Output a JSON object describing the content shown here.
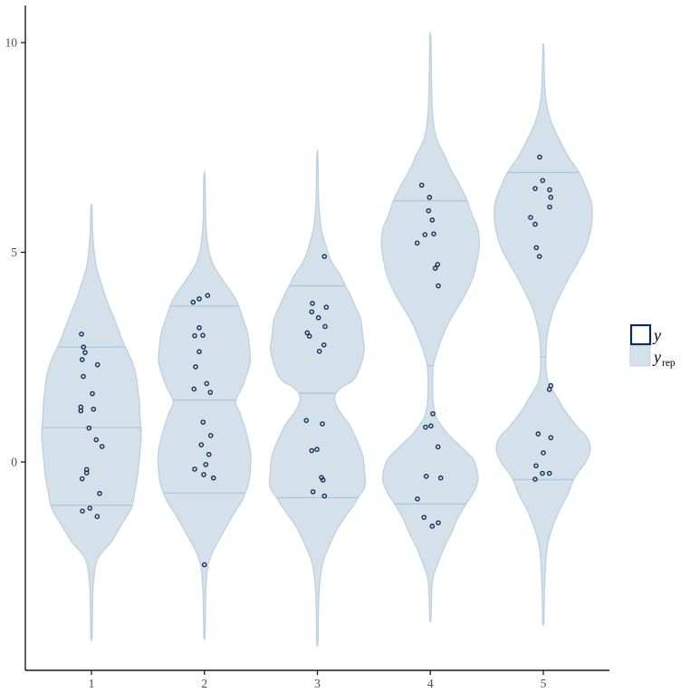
{
  "chart_data": {
    "type": "violin",
    "title": "",
    "xlabel": "",
    "ylabel": "",
    "grid": false,
    "legend_position": "right",
    "x_ticks": [
      {
        "group": 1,
        "label": "1"
      },
      {
        "group": 2,
        "label": "2"
      },
      {
        "group": 3,
        "label": "3"
      },
      {
        "group": 4,
        "label": "4"
      },
      {
        "group": 5,
        "label": "5"
      }
    ],
    "y_ticks": [
      {
        "value": 0,
        "label": "0"
      },
      {
        "value": 5,
        "label": "5"
      },
      {
        "value": 10,
        "label": "10"
      }
    ],
    "y_range": [
      -5,
      10.3
    ],
    "legend": {
      "items": [
        {
          "id": "y",
          "label_main": "y",
          "label_sub": "",
          "swatch": "outlined"
        },
        {
          "id": "y_rep",
          "label_main": "y",
          "label_sub": "rep",
          "swatch": "filled"
        }
      ]
    },
    "colors": {
      "violin_fill": "#d5e1ea",
      "violin_stroke": "#bdd1df",
      "quantile_line": "#adc6d8",
      "point_stroke": "#12315c",
      "axis": "#1a1a1a",
      "tick_label": "#4d4d4d",
      "legend_y_border": "#0c2c56",
      "legend_yrep_border": "#c9d9e4",
      "legend_text": "#000000"
    },
    "violins": [
      {
        "group": 1,
        "quantiles": [
          2.74,
          0.82,
          -1.03
        ],
        "profile": [
          [
            -4.17,
            0.7
          ],
          [
            -3.4,
            1.2
          ],
          [
            -2.8,
            2.5
          ],
          [
            -2.3,
            7
          ],
          [
            -1.9,
            22
          ],
          [
            -1.5,
            33
          ],
          [
            -1.1,
            44
          ],
          [
            -0.8,
            47
          ],
          [
            -0.4,
            50.5
          ],
          [
            0.0,
            52.5
          ],
          [
            0.35,
            54
          ],
          [
            0.7,
            55
          ],
          [
            1.1,
            53.5
          ],
          [
            1.4,
            53
          ],
          [
            1.7,
            51.5
          ],
          [
            2.1,
            49
          ],
          [
            2.44,
            44
          ],
          [
            2.81,
            36
          ],
          [
            3.2,
            29
          ],
          [
            3.53,
            23
          ],
          [
            3.9,
            16
          ],
          [
            4.25,
            11
          ],
          [
            4.6,
            6
          ],
          [
            5.0,
            3
          ],
          [
            5.5,
            1.3
          ],
          [
            6.08,
            0.6
          ]
        ],
        "points": [
          [
            -11,
            3.05
          ],
          [
            -8.7,
            2.74
          ],
          [
            -7,
            2.61
          ],
          [
            -10.3,
            2.44
          ],
          [
            6.7,
            2.32
          ],
          [
            -9,
            2.04
          ],
          [
            1,
            1.63
          ],
          [
            -11.7,
            1.31
          ],
          [
            -11.7,
            1.22
          ],
          [
            2.3,
            1.26
          ],
          [
            -2.7,
            0.81
          ],
          [
            5.3,
            0.53
          ],
          [
            11.7,
            0.37
          ],
          [
            -5.3,
            -0.18
          ],
          [
            -5.3,
            -0.26
          ],
          [
            -10.3,
            -0.4
          ],
          [
            9,
            -0.75
          ],
          [
            -1.7,
            -1.1
          ],
          [
            -10,
            -1.17
          ],
          [
            6.3,
            -1.3
          ]
        ]
      },
      {
        "group": 2,
        "quantiles": [
          3.72,
          1.48,
          -0.74
        ],
        "profile": [
          [
            -4.14,
            0.7
          ],
          [
            -3.4,
            1.2
          ],
          [
            -2.9,
            2
          ],
          [
            -2.45,
            4
          ],
          [
            -2.1,
            10
          ],
          [
            -1.94,
            14
          ],
          [
            -1.55,
            24
          ],
          [
            -1.23,
            32.5
          ],
          [
            -0.9,
            42
          ],
          [
            -0.5,
            48.8
          ],
          [
            -0.1,
            51
          ],
          [
            0.22,
            51
          ],
          [
            0.6,
            47.5
          ],
          [
            0.93,
            43
          ],
          [
            1.2,
            38.5
          ],
          [
            1.45,
            34.5
          ],
          [
            1.8,
            42
          ],
          [
            2.1,
            47
          ],
          [
            2.38,
            50.5
          ],
          [
            2.7,
            50
          ],
          [
            3.09,
            47.5
          ],
          [
            3.45,
            42
          ],
          [
            3.82,
            36
          ],
          [
            4.1,
            28
          ],
          [
            4.54,
            14
          ],
          [
            4.8,
            8
          ],
          [
            5.2,
            3.5
          ],
          [
            5.7,
            1.5
          ],
          [
            6.8,
            0.6
          ]
        ],
        "points": [
          [
            -12.45,
            3.81
          ],
          [
            -5.75,
            3.89
          ],
          [
            3.55,
            3.97
          ],
          [
            -5.75,
            3.2
          ],
          [
            -10.75,
            3.01
          ],
          [
            -1.75,
            3.02
          ],
          [
            -5.75,
            2.63
          ],
          [
            -9.75,
            2.27
          ],
          [
            2.55,
            1.87
          ],
          [
            -11.45,
            1.74
          ],
          [
            6.55,
            1.66
          ],
          [
            -1.45,
            0.95
          ],
          [
            6.95,
            0.63
          ],
          [
            -3.45,
            0.41
          ],
          [
            4.95,
            0.18
          ],
          [
            1.55,
            -0.06
          ],
          [
            -10.75,
            -0.17
          ],
          [
            -0.75,
            -0.3
          ],
          [
            9.95,
            -0.38
          ],
          [
            0,
            -2.45
          ]
        ]
      },
      {
        "group": 3,
        "quantiles": [
          4.2,
          1.64,
          -0.85
        ],
        "profile": [
          [
            -4.3,
            0.7
          ],
          [
            -3.5,
            1.2
          ],
          [
            -2.9,
            2.5
          ],
          [
            -2.4,
            6
          ],
          [
            -2.0,
            13
          ],
          [
            -1.6,
            22
          ],
          [
            -1.3,
            31
          ],
          [
            -1.0,
            41
          ],
          [
            -0.85,
            45
          ],
          [
            -0.58,
            52.5
          ],
          [
            -0.2,
            52
          ],
          [
            0.15,
            50
          ],
          [
            0.5,
            44
          ],
          [
            0.86,
            36
          ],
          [
            1.1,
            28
          ],
          [
            1.3,
            22
          ],
          [
            1.5,
            19
          ],
          [
            1.64,
            20.5
          ],
          [
            1.8,
            28
          ],
          [
            1.94,
            39
          ],
          [
            2.2,
            46
          ],
          [
            2.66,
            51.7
          ],
          [
            3.0,
            50
          ],
          [
            3.39,
            48
          ],
          [
            3.7,
            42
          ],
          [
            4.0,
            36
          ],
          [
            4.2,
            31
          ],
          [
            4.47,
            25
          ],
          [
            4.8,
            15
          ],
          [
            5.18,
            9
          ],
          [
            5.6,
            4
          ],
          [
            6.2,
            1.5
          ],
          [
            7.3,
            0.6
          ]
        ],
        "points": [
          [
            7.8,
            4.9
          ],
          [
            -5.5,
            3.78
          ],
          [
            9.8,
            3.69
          ],
          [
            -6.2,
            3.58
          ],
          [
            1.2,
            3.44
          ],
          [
            8.5,
            3.23
          ],
          [
            -11.2,
            3.08
          ],
          [
            -8.8,
            3.0
          ],
          [
            7.2,
            2.79
          ],
          [
            2.2,
            2.64
          ],
          [
            -12.2,
            0.99
          ],
          [
            5.5,
            0.91
          ],
          [
            -0.5,
            0.3
          ],
          [
            -6.2,
            0.27
          ],
          [
            4.5,
            -0.37
          ],
          [
            6.2,
            -0.43
          ],
          [
            -4.8,
            -0.71
          ],
          [
            7.8,
            -0.81
          ]
        ]
      },
      {
        "group": 4,
        "quantiles": [
          6.23,
          2.3,
          -1.0
        ],
        "profile": [
          [
            -3.74,
            0.7
          ],
          [
            -3.2,
            1.3
          ],
          [
            -2.75,
            3
          ],
          [
            -2.38,
            9
          ],
          [
            -2.0,
            16
          ],
          [
            -1.66,
            24
          ],
          [
            -1.35,
            30
          ],
          [
            -1.05,
            38
          ],
          [
            -0.75,
            47
          ],
          [
            -0.45,
            52.5
          ],
          [
            -0.15,
            51
          ],
          [
            0.1,
            46
          ],
          [
            0.4,
            32
          ],
          [
            0.65,
            20
          ],
          [
            0.86,
            12.5
          ],
          [
            1.1,
            6
          ],
          [
            1.45,
            3
          ],
          [
            1.9,
            2.5
          ],
          [
            2.31,
            3.5
          ],
          [
            2.66,
            8
          ],
          [
            3.02,
            14
          ],
          [
            3.4,
            22
          ],
          [
            3.74,
            31.7
          ],
          [
            4.1,
            41
          ],
          [
            4.47,
            48
          ],
          [
            4.85,
            52
          ],
          [
            5.18,
            54
          ],
          [
            5.55,
            52.5
          ],
          [
            5.9,
            46
          ],
          [
            6.23,
            40.8
          ],
          [
            6.63,
            31.7
          ],
          [
            7.0,
            22
          ],
          [
            7.34,
            15
          ],
          [
            7.65,
            8
          ],
          [
            8.0,
            4
          ],
          [
            8.5,
            2
          ],
          [
            9.2,
            1.2
          ],
          [
            10.13,
            0.5
          ]
        ],
        "points": [
          [
            -9.55,
            6.6
          ],
          [
            -0.95,
            6.31
          ],
          [
            -1.95,
            5.99
          ],
          [
            2.05,
            5.77
          ],
          [
            -5.95,
            5.42
          ],
          [
            3.75,
            5.44
          ],
          [
            -14.55,
            5.22
          ],
          [
            8.05,
            4.71
          ],
          [
            5.45,
            4.62
          ],
          [
            8.75,
            4.2
          ],
          [
            2.75,
            1.15
          ],
          [
            -5.25,
            0.83
          ],
          [
            0.75,
            0.86
          ],
          [
            8.45,
            0.36
          ],
          [
            -4.55,
            -0.34
          ],
          [
            11.45,
            -0.38
          ],
          [
            -14.25,
            -0.88
          ],
          [
            -6.95,
            -1.32
          ],
          [
            2.05,
            -1.53
          ],
          [
            8.75,
            -1.45
          ]
        ]
      },
      {
        "group": 5,
        "quantiles": [
          6.9,
          2.5,
          -0.42
        ],
        "profile": [
          [
            -3.82,
            0.7
          ],
          [
            -3.2,
            1.2
          ],
          [
            -2.7,
            2
          ],
          [
            -2.3,
            3
          ],
          [
            -2.0,
            4.5
          ],
          [
            -1.7,
            8
          ],
          [
            -1.37,
            13.3
          ],
          [
            -1.05,
            20
          ],
          [
            -0.79,
            26.7
          ],
          [
            -0.42,
            33.4
          ],
          [
            -0.2,
            40
          ],
          [
            0.0,
            46.7
          ],
          [
            0.3,
            52
          ],
          [
            0.6,
            48
          ],
          [
            0.8,
            39
          ],
          [
            1.1,
            28
          ],
          [
            1.35,
            20
          ],
          [
            1.51,
            16
          ],
          [
            1.88,
            6
          ],
          [
            2.22,
            3
          ],
          [
            2.6,
            3
          ],
          [
            2.96,
            4
          ],
          [
            3.3,
            7
          ],
          [
            3.67,
            12
          ],
          [
            4.0,
            19
          ],
          [
            4.39,
            28.3
          ],
          [
            4.75,
            38
          ],
          [
            5.11,
            46.7
          ],
          [
            5.5,
            52
          ],
          [
            5.83,
            54
          ],
          [
            6.2,
            53
          ],
          [
            6.55,
            47
          ],
          [
            6.9,
            39.7
          ],
          [
            7.2,
            30
          ],
          [
            7.5,
            22
          ],
          [
            7.99,
            11
          ],
          [
            8.3,
            6
          ],
          [
            8.7,
            2.5
          ],
          [
            9.1,
            1.3
          ],
          [
            9.88,
            0.5
          ]
        ],
        "points": [
          [
            -4,
            7.27
          ],
          [
            -0.7,
            6.71
          ],
          [
            -9,
            6.52
          ],
          [
            7,
            6.49
          ],
          [
            8.3,
            6.31
          ],
          [
            7,
            6.08
          ],
          [
            -14,
            5.83
          ],
          [
            -9,
            5.67
          ],
          [
            -7.7,
            5.11
          ],
          [
            -4.3,
            4.9
          ],
          [
            6.7,
            1.73
          ],
          [
            8.3,
            1.82
          ],
          [
            -5.7,
            0.67
          ],
          [
            8.3,
            0.58
          ],
          [
            0,
            0.22
          ],
          [
            -8,
            -0.09
          ],
          [
            -1,
            -0.27
          ],
          [
            6.7,
            -0.27
          ],
          [
            -9,
            -0.41
          ]
        ]
      }
    ]
  }
}
